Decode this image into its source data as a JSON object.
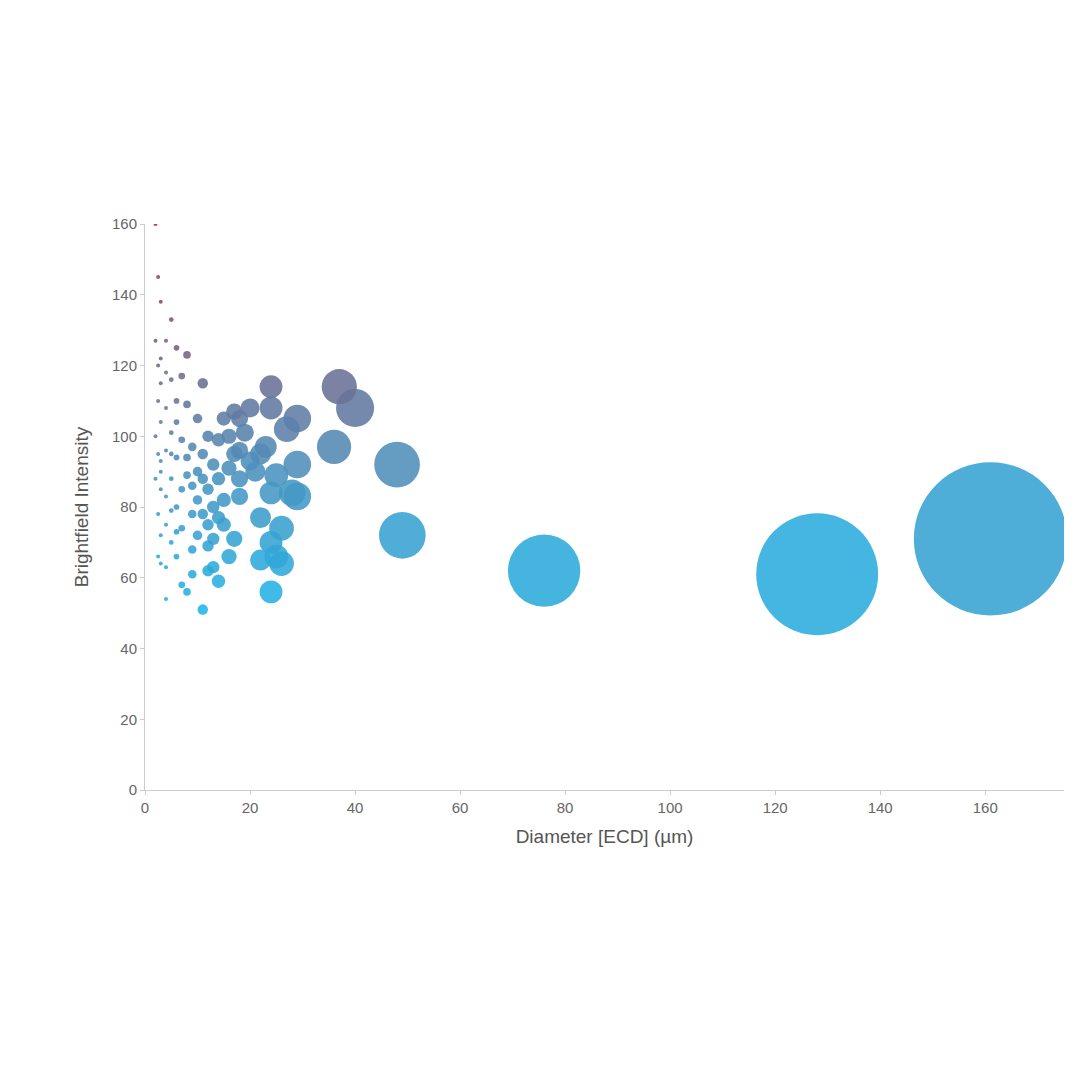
{
  "chart_data": {
    "type": "bubble",
    "x_label": "Diameter [ECD] (µm)",
    "y_label": "Brightfield Intensity",
    "x": [
      161,
      128,
      76,
      49,
      48,
      40,
      37,
      36,
      29,
      28,
      29,
      29,
      27,
      26,
      26,
      25,
      24,
      24,
      24,
      25,
      24,
      24,
      23,
      22,
      22,
      22,
      20,
      18,
      18,
      18,
      18,
      17,
      16,
      16,
      17,
      15,
      15,
      14,
      14,
      14,
      13,
      13,
      13,
      12,
      12,
      12,
      12,
      11,
      11,
      11,
      11,
      10,
      10,
      10,
      9,
      9,
      9,
      9,
      8,
      8,
      8,
      8,
      7,
      7,
      7,
      7,
      6,
      6,
      6,
      6,
      6,
      5,
      5,
      5,
      5,
      5,
      4,
      4,
      4,
      4,
      4,
      4,
      3,
      3,
      3,
      3,
      3,
      3,
      3,
      2.5,
      2.5,
      2.5,
      2.5,
      2.5,
      2.5,
      2,
      2,
      2,
      2,
      3,
      19,
      21,
      16,
      15,
      13,
      10,
      12,
      6,
      5,
      4,
      3,
      8,
      9,
      11,
      14,
      17,
      20,
      6,
      7,
      4,
      5
    ],
    "values": [
      71,
      61,
      62,
      72,
      92,
      108,
      114,
      97,
      83,
      84,
      92,
      105,
      102,
      64,
      74,
      66,
      70,
      108,
      114,
      89,
      84,
      56,
      97,
      95,
      77,
      65,
      93,
      105,
      96,
      88,
      83,
      107,
      100,
      66,
      71,
      105,
      82,
      59,
      77,
      88,
      80,
      92,
      63,
      100,
      75,
      69,
      62,
      115,
      95,
      88,
      51,
      82,
      105,
      72,
      78,
      97,
      61,
      68,
      109,
      123,
      89,
      56,
      85,
      58,
      99,
      74,
      94,
      110,
      125,
      80,
      66,
      88,
      101,
      116,
      133,
      70,
      83,
      96,
      108,
      127,
      63,
      54,
      72,
      90,
      104,
      115,
      122,
      138,
      85,
      145,
      120,
      110,
      95,
      78,
      66,
      160,
      127,
      100,
      88,
      93,
      101,
      90,
      91,
      75,
      71,
      90,
      85,
      73,
      79,
      75,
      64,
      94,
      86,
      78,
      99,
      95,
      108,
      104,
      117,
      118,
      95
    ],
    "xlim": [
      0,
      175
    ],
    "xticks": [
      0,
      20,
      40,
      60,
      80,
      100,
      120,
      140,
      160
    ],
    "ylim": [
      0,
      160
    ],
    "yticks": [
      0,
      20,
      40,
      60,
      80,
      100,
      120,
      140,
      160
    ],
    "grid": false
  }
}
